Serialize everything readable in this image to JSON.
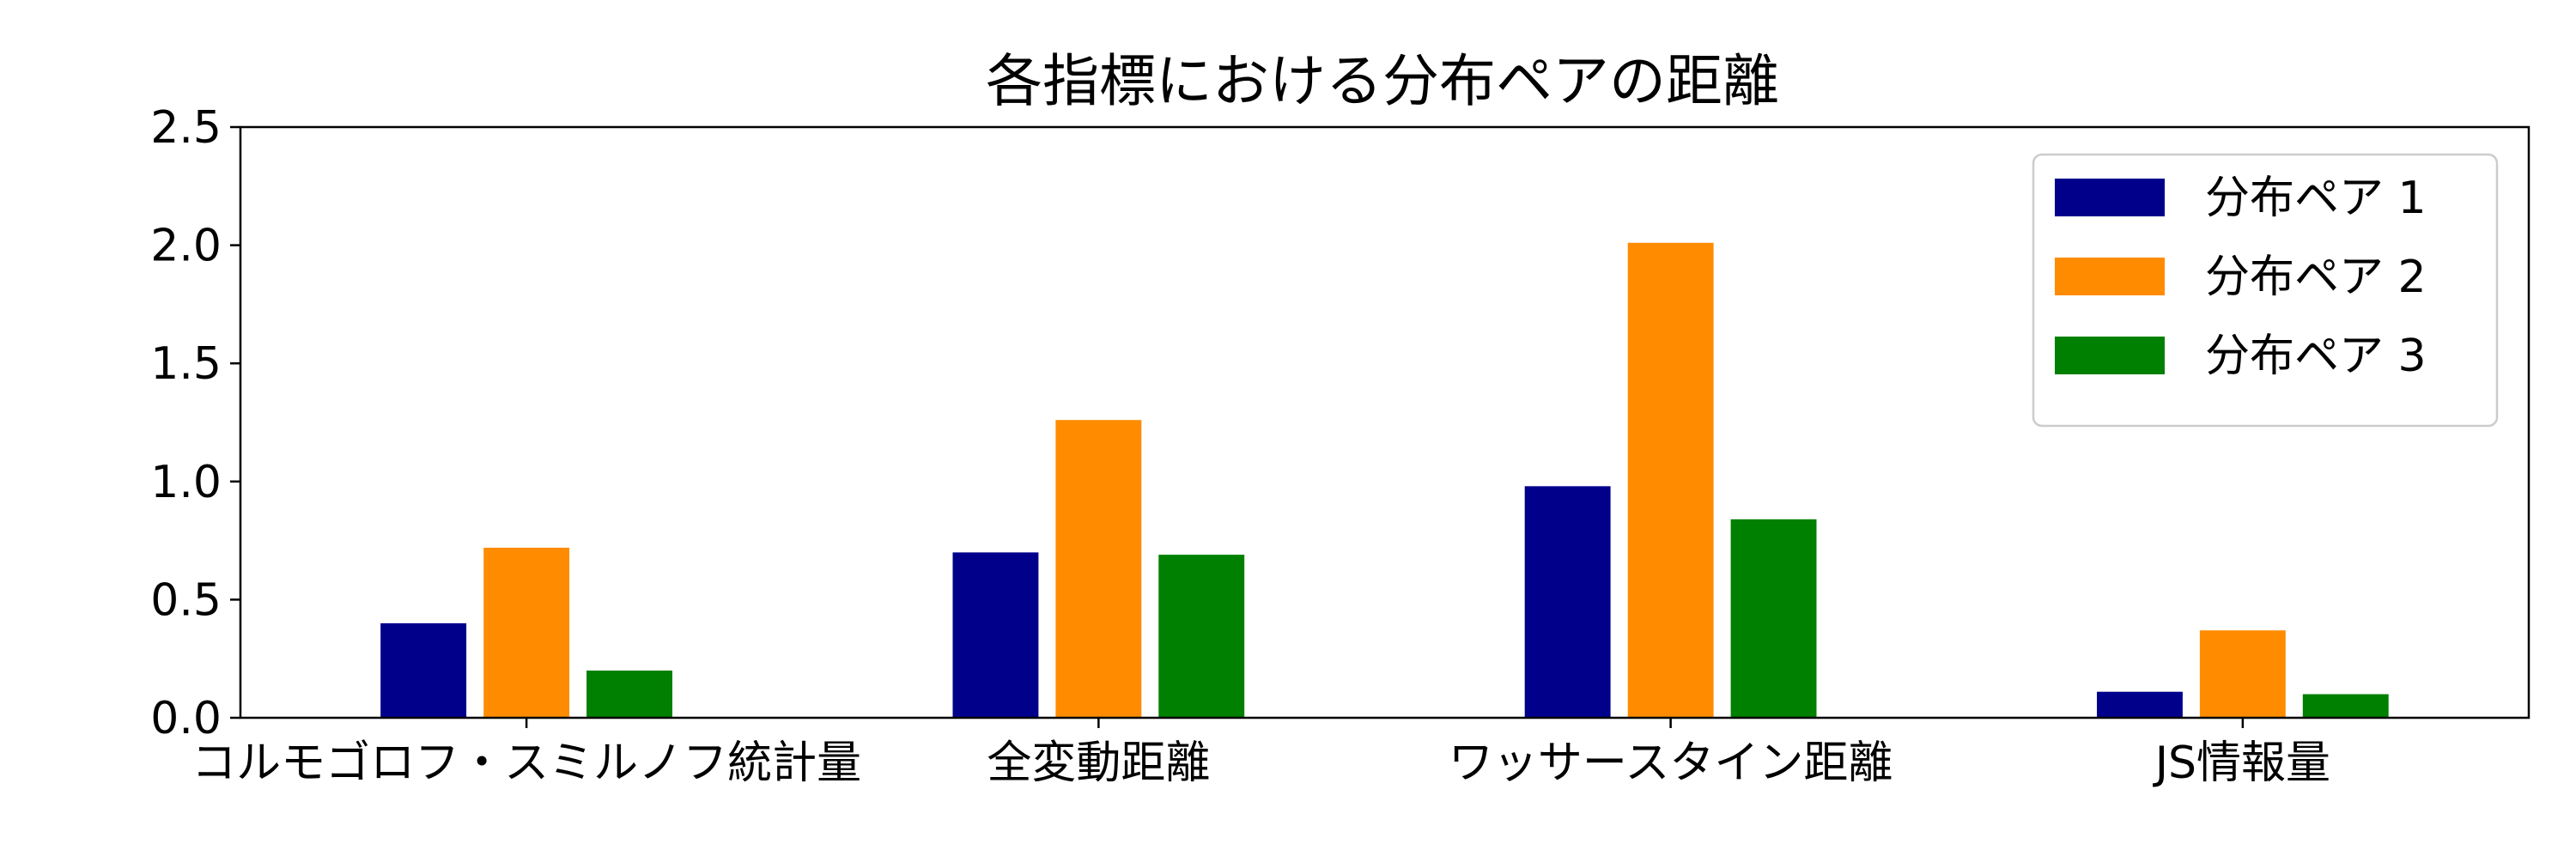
{
  "chart_data": {
    "type": "bar",
    "title": "各指標における分布ペアの距離",
    "xlabel": "",
    "ylabel": "",
    "categories": [
      "コルモゴロフ・スミルノフ統計量",
      "全変動距離",
      "ワッサースタイン距離",
      "JS情報量"
    ],
    "series": [
      {
        "name": "分布ペア 1",
        "color": "#00008b",
        "values": [
          0.4,
          0.7,
          0.98,
          0.11
        ]
      },
      {
        "name": "分布ペア 2",
        "color": "#ff8c00",
        "values": [
          0.72,
          1.26,
          2.01,
          0.37
        ]
      },
      {
        "name": "分布ペア 3",
        "color": "#008000",
        "values": [
          0.2,
          0.69,
          0.84,
          0.1
        ]
      }
    ],
    "ylim": [
      0,
      2.5
    ],
    "yticks": [
      0.0,
      0.5,
      1.0,
      1.5,
      2.0,
      2.5
    ],
    "ytick_labels": [
      "0.0",
      "0.5",
      "1.0",
      "1.5",
      "2.0",
      "2.5"
    ],
    "grid": false,
    "legend_position": "top-right"
  }
}
